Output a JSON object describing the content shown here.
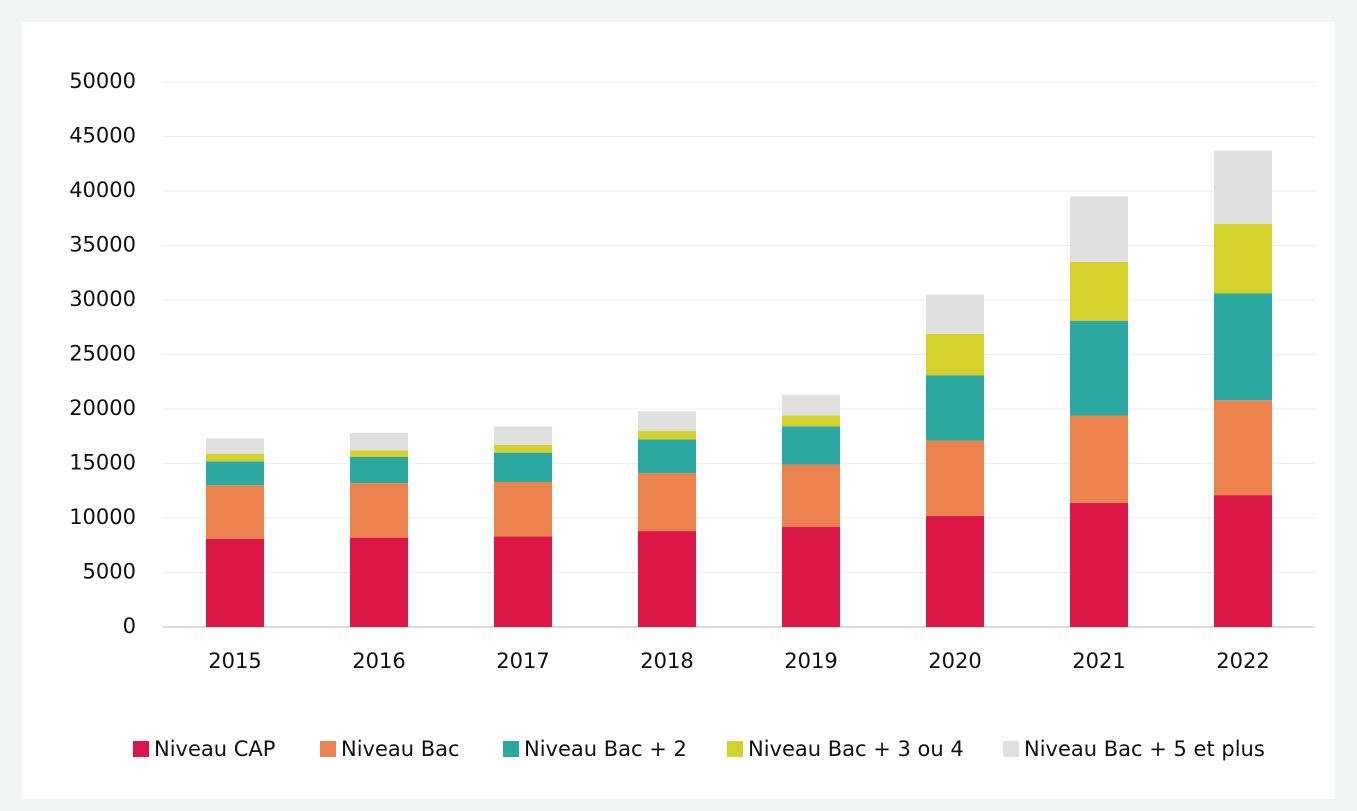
{
  "chart_data": {
    "type": "stacked_bar",
    "categories": [
      "2015",
      "2016",
      "2017",
      "2018",
      "2019",
      "2020",
      "2021",
      "2022"
    ],
    "series": [
      {
        "name": "Niveau CAP",
        "color": "#dc1646",
        "values": [
          8100,
          8200,
          8300,
          8800,
          9200,
          10200,
          11400,
          12100
        ]
      },
      {
        "name": "Niveau Bac",
        "color": "#ec834e",
        "values": [
          4900,
          5000,
          5000,
          5300,
          5700,
          6900,
          8000,
          8700
        ]
      },
      {
        "name": "Niveau Bac + 2",
        "color": "#2ba8a0",
        "values": [
          2200,
          2400,
          2700,
          3100,
          3500,
          6000,
          8700,
          9800
        ]
      },
      {
        "name": "Niveau Bac + 3 ou 4",
        "color": "#d4d12d",
        "values": [
          700,
          600,
          700,
          800,
          1000,
          3800,
          5400,
          6400
        ]
      },
      {
        "name": "Niveau Bac + 5 et plus",
        "color": "#e0e0e0",
        "values": [
          1400,
          1600,
          1700,
          1800,
          1900,
          3600,
          6000,
          6700
        ]
      }
    ],
    "ylim": [
      0,
      50000
    ],
    "yticks": [
      0,
      5000,
      10000,
      15000,
      20000,
      25000,
      30000,
      35000,
      40000,
      45000,
      50000
    ],
    "grid": true,
    "legend": "bottom"
  }
}
